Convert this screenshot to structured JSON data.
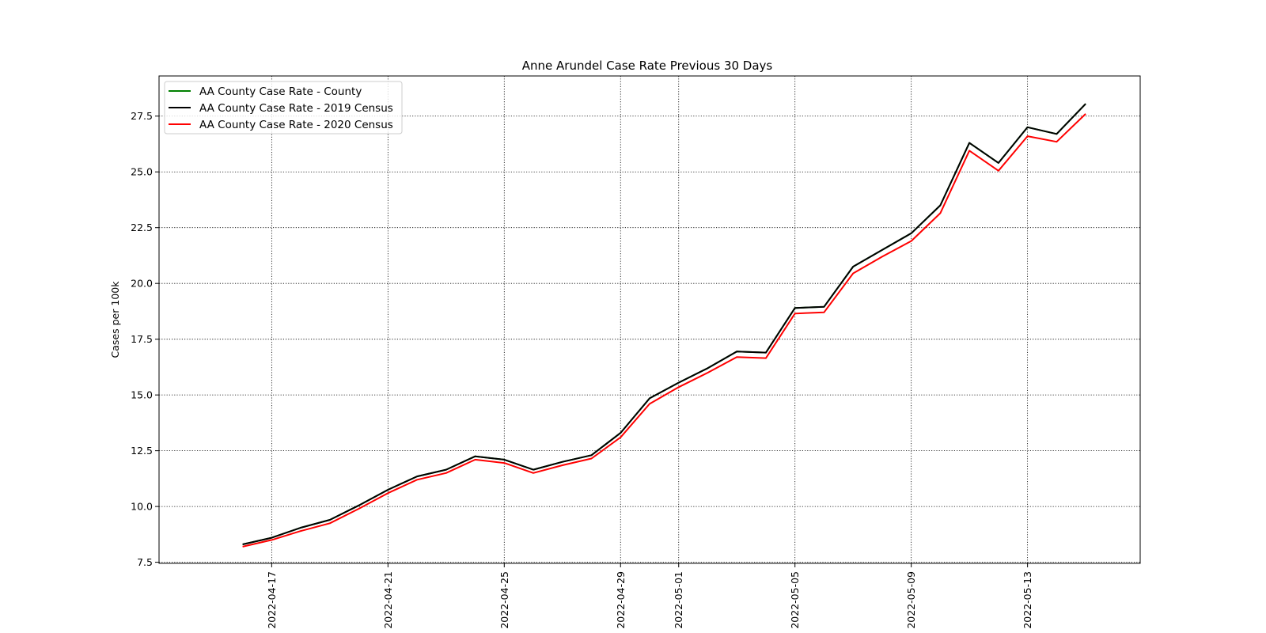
{
  "chart_data": {
    "type": "line",
    "title": "Anne Arundel Case Rate Previous 30 Days",
    "xlabel": "",
    "ylabel": "Cases per 100k",
    "x_tick_labels": [
      "2022-04-17",
      "2022-04-21",
      "2022-04-25",
      "2022-04-29",
      "2022-05-01",
      "2022-05-05",
      "2022-05-09",
      "2022-05-13"
    ],
    "y_tick_labels": [
      "7.5",
      "10.0",
      "12.5",
      "15.0",
      "17.5",
      "20.0",
      "22.5",
      "25.0",
      "27.5"
    ],
    "y_ticks": [
      7.5,
      10.0,
      12.5,
      15.0,
      17.5,
      20.0,
      22.5,
      25.0,
      27.5
    ],
    "xlim": [
      "2022-04-13T03:00",
      "2022-05-16T21:00"
    ],
    "ylim": [
      7.45,
      29.3
    ],
    "grid": true,
    "legend_position": "upper-left",
    "x": [
      "2022-04-16",
      "2022-04-17",
      "2022-04-18",
      "2022-04-19",
      "2022-04-20",
      "2022-04-21",
      "2022-04-22",
      "2022-04-23",
      "2022-04-24",
      "2022-04-25",
      "2022-04-26",
      "2022-04-27",
      "2022-04-28",
      "2022-04-29",
      "2022-04-30",
      "2022-05-01",
      "2022-05-02",
      "2022-05-03",
      "2022-05-04",
      "2022-05-05",
      "2022-05-06",
      "2022-05-07",
      "2022-05-08",
      "2022-05-09",
      "2022-05-10",
      "2022-05-11",
      "2022-05-12",
      "2022-05-13",
      "2022-05-14",
      "2022-05-15",
      "2022-05-16"
    ],
    "series": [
      {
        "name": "AA County Case Rate - County",
        "color": "#008000",
        "values": [
          8.3,
          8.6,
          9.05,
          9.4,
          10.05,
          10.75,
          11.35,
          11.65,
          12.25,
          12.1,
          11.65,
          12.0,
          12.3,
          13.3,
          14.85,
          15.55,
          16.2,
          16.95,
          16.9,
          18.9,
          18.95,
          20.75,
          21.5,
          22.25,
          23.5,
          26.3,
          25.4,
          27.0,
          26.7,
          28.05,
          null
        ]
      },
      {
        "name": "AA County Case Rate - 2019 Census",
        "color": "#000000",
        "values": [
          8.3,
          8.6,
          9.05,
          9.4,
          10.05,
          10.75,
          11.35,
          11.65,
          12.25,
          12.1,
          11.65,
          12.0,
          12.3,
          13.3,
          14.85,
          15.55,
          16.2,
          16.95,
          16.9,
          18.9,
          18.95,
          20.75,
          21.5,
          22.25,
          23.5,
          26.3,
          25.4,
          27.0,
          26.7,
          28.05,
          null
        ]
      },
      {
        "name": "AA County Case Rate - 2020 Census",
        "color": "#ff0000",
        "values": [
          8.2,
          8.5,
          8.9,
          9.25,
          9.9,
          10.6,
          11.2,
          11.5,
          12.1,
          11.95,
          11.5,
          11.85,
          12.15,
          13.1,
          14.6,
          15.35,
          16.0,
          16.7,
          16.65,
          18.65,
          18.7,
          20.45,
          21.2,
          21.9,
          23.15,
          25.95,
          25.05,
          26.6,
          26.35,
          27.6,
          null
        ]
      }
    ]
  }
}
